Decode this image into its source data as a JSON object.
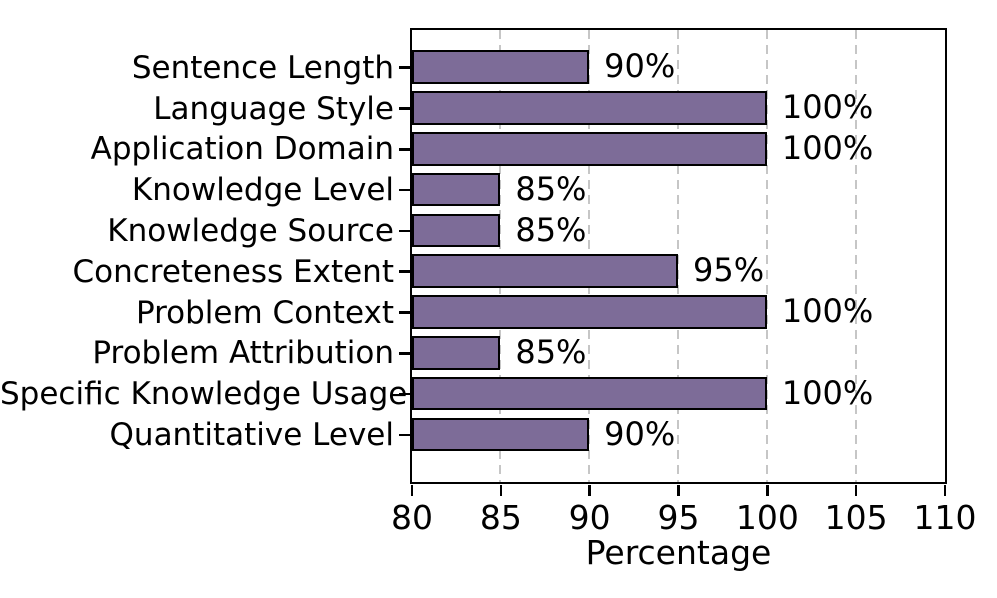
{
  "chart_data": {
    "type": "bar",
    "orientation": "horizontal",
    "xlabel": "Percentage",
    "xlim": [
      80,
      110
    ],
    "xticks": [
      80,
      85,
      90,
      95,
      100,
      105,
      110
    ],
    "grid": "vertical dashed gridlines at interior x ticks, drawn behind bars",
    "legend": "none",
    "categories": [
      "Sentence Length",
      "Language Style",
      "Application Domain",
      "Knowledge Level",
      "Knowledge Source",
      "Concreteness Extent",
      "Problem Context",
      "Problem Attribution",
      "Specific Knowledge Usage",
      "Quantitative Level"
    ],
    "values": [
      90,
      100,
      100,
      85,
      85,
      95,
      100,
      85,
      100,
      90
    ],
    "value_labels": [
      "90%",
      "100%",
      "100%",
      "85%",
      "85%",
      "95%",
      "100%",
      "85%",
      "100%",
      "90%"
    ],
    "colors": {
      "bar_fill": "#7d6c98",
      "bar_edge": "#000000",
      "grid": "#c6c6c6",
      "axis": "#000000",
      "text": "#000000",
      "background": "#ffffff"
    }
  }
}
